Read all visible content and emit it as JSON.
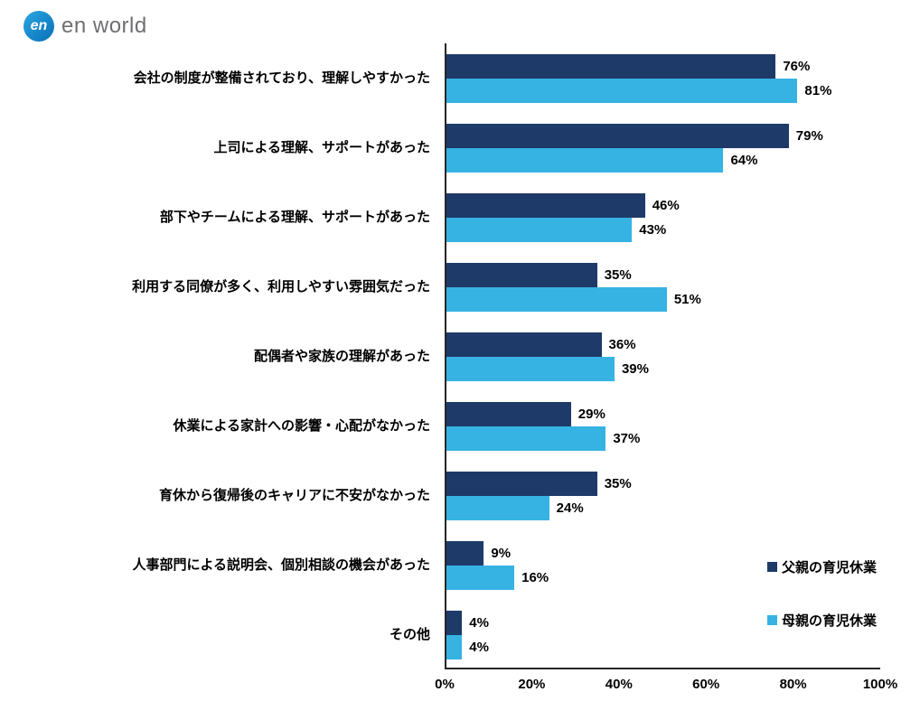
{
  "logo": {
    "mark": "en",
    "text": "en world"
  },
  "chart_data": {
    "type": "bar",
    "orientation": "horizontal",
    "title": "",
    "xlabel": "",
    "ylabel": "",
    "xlim": [
      0,
      100
    ],
    "grid": false,
    "legend_position": "inside-bottom-right",
    "value_suffix": "%",
    "x_ticks": [
      "0%",
      "20%",
      "40%",
      "60%",
      "80%",
      "100%"
    ],
    "categories": [
      "会社の制度が整備されており、理解しやすかった",
      "上司による理解、サポートがあった",
      "部下やチームによる理解、サポートがあった",
      "利用する同僚が多く、利用しやすい雰囲気だった",
      "配偶者や家族の理解があった",
      "休業による家計への影響・心配がなかった",
      "育休から復帰後のキャリアに不安がなかった",
      "人事部門による説明会、個別相談の機会があった",
      "その他"
    ],
    "series": [
      {
        "name": "父親の育児休業",
        "color": "#1e3a68",
        "values": [
          76,
          79,
          46,
          35,
          36,
          29,
          35,
          9,
          4
        ]
      },
      {
        "name": "母親の育児休業",
        "color": "#36b3e3",
        "values": [
          81,
          64,
          43,
          51,
          39,
          37,
          24,
          16,
          4
        ]
      }
    ]
  }
}
